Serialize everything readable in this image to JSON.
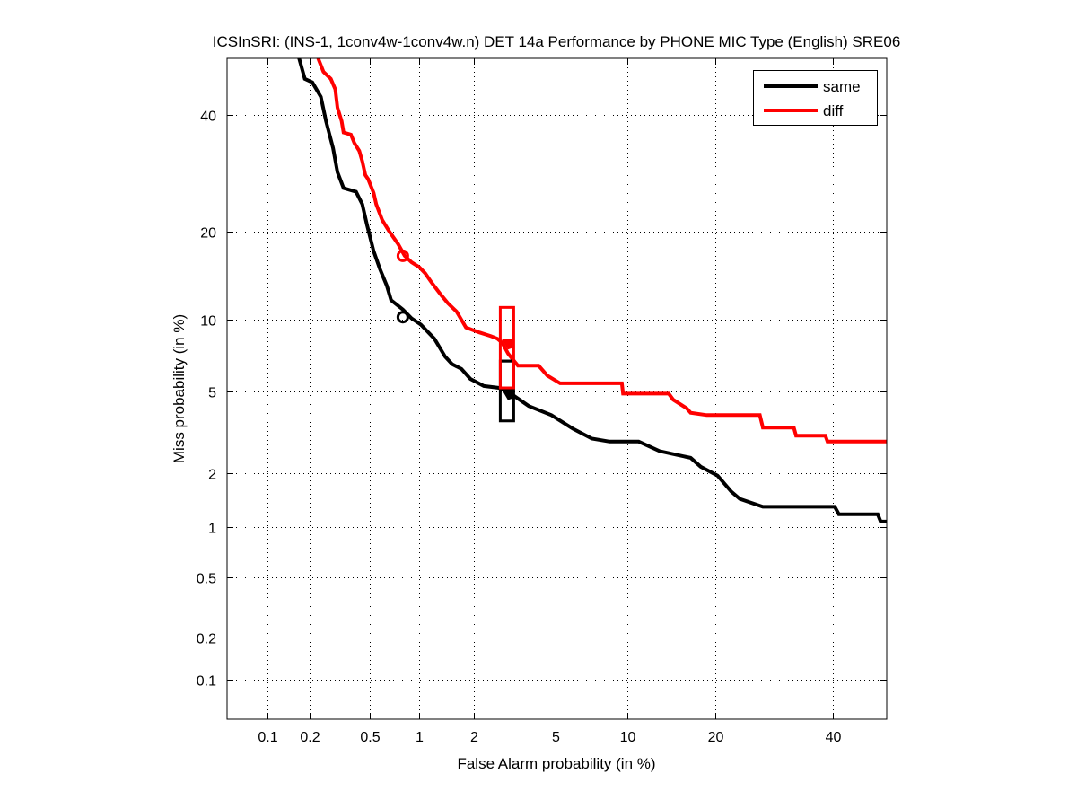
{
  "chart_data": {
    "type": "line",
    "scale": "probit",
    "title": "ICSInSRI: (INS-1, 1conv4w-1conv4w.n) DET 14a Performance by PHONE MIC Type (English) SRE06",
    "xlabel": "False Alarm probability (in %)",
    "ylabel": "Miss probability (in %)",
    "xlim": [
      0.05,
      50.7
    ],
    "ylim": [
      0.05,
      51.2
    ],
    "grid": true,
    "legend_position": "top-right",
    "x_ticks": [
      0.1,
      0.2,
      0.5,
      1,
      2,
      5,
      10,
      20,
      40
    ],
    "x_tick_labels": [
      "0.1",
      "0.2",
      "0.5",
      "1",
      "2",
      "5",
      "10",
      "20",
      "40"
    ],
    "y_ticks": [
      0.1,
      0.2,
      0.5,
      1,
      2,
      5,
      10,
      20,
      40
    ],
    "y_tick_labels": [
      "0.1",
      "0.2",
      "0.5",
      "1",
      "2",
      "5",
      "10",
      "20",
      "40"
    ],
    "series": [
      {
        "name": "same",
        "color": "#000000",
        "points": [
          [
            0.17,
            51.2
          ],
          [
            0.186,
            47.1
          ],
          [
            0.21,
            46.4
          ],
          [
            0.24,
            43.5
          ],
          [
            0.26,
            38.8
          ],
          [
            0.29,
            33.7
          ],
          [
            0.31,
            29.4
          ],
          [
            0.34,
            26.7
          ],
          [
            0.41,
            26.1
          ],
          [
            0.45,
            24.1
          ],
          [
            0.48,
            21.1
          ],
          [
            0.53,
            17.4
          ],
          [
            0.58,
            15.2
          ],
          [
            0.64,
            13.3
          ],
          [
            0.68,
            11.8
          ],
          [
            0.8,
            10.9
          ],
          [
            0.9,
            10.1
          ],
          [
            1.02,
            9.55
          ],
          [
            1.22,
            8.4
          ],
          [
            1.4,
            7.1
          ],
          [
            1.53,
            6.6
          ],
          [
            1.72,
            6.3
          ],
          [
            1.92,
            5.7
          ],
          [
            2.26,
            5.3
          ],
          [
            2.7,
            5.2
          ],
          [
            3.09,
            4.9
          ],
          [
            3.77,
            4.3
          ],
          [
            4.8,
            3.9
          ],
          [
            6.0,
            3.35
          ],
          [
            7.2,
            3.0
          ],
          [
            8.5,
            2.9
          ],
          [
            11.0,
            2.9
          ],
          [
            13.1,
            2.6
          ],
          [
            16.7,
            2.4
          ],
          [
            18.0,
            2.16
          ],
          [
            20.3,
            1.94
          ],
          [
            22.3,
            1.59
          ],
          [
            23.6,
            1.45
          ],
          [
            27.3,
            1.31
          ],
          [
            40.4,
            1.31
          ],
          [
            41.2,
            1.19
          ],
          [
            48.9,
            1.19
          ],
          [
            49.5,
            1.08
          ],
          [
            50.7,
            1.08
          ]
        ],
        "actual_dcf_point": [
          0.8,
          10.2
        ],
        "min_dcf_box": {
          "x": 2.96,
          "y_low": 3.66,
          "y_high": 6.8
        }
      },
      {
        "name": "diff",
        "color": "#ff0000",
        "points": [
          [
            0.23,
            51.2
          ],
          [
            0.25,
            48.5
          ],
          [
            0.28,
            47.1
          ],
          [
            0.3,
            45.0
          ],
          [
            0.31,
            41.4
          ],
          [
            0.33,
            38.8
          ],
          [
            0.34,
            36.6
          ],
          [
            0.38,
            36.2
          ],
          [
            0.4,
            34.6
          ],
          [
            0.43,
            33.2
          ],
          [
            0.45,
            31.3
          ],
          [
            0.47,
            28.9
          ],
          [
            0.49,
            28.2
          ],
          [
            0.53,
            25.9
          ],
          [
            0.55,
            24.1
          ],
          [
            0.6,
            21.7
          ],
          [
            0.66,
            20.1
          ],
          [
            0.75,
            18.3
          ],
          [
            0.82,
            16.8
          ],
          [
            0.9,
            16.0
          ],
          [
            1.0,
            15.4
          ],
          [
            1.08,
            14.7
          ],
          [
            1.18,
            13.6
          ],
          [
            1.32,
            12.4
          ],
          [
            1.45,
            11.5
          ],
          [
            1.62,
            10.7
          ],
          [
            1.82,
            9.3
          ],
          [
            2.14,
            8.9
          ],
          [
            2.46,
            8.6
          ],
          [
            2.65,
            8.4
          ],
          [
            2.8,
            8.1
          ],
          [
            3.0,
            7.3
          ],
          [
            3.35,
            6.5
          ],
          [
            4.2,
            6.5
          ],
          [
            4.6,
            5.9
          ],
          [
            5.26,
            5.45
          ],
          [
            9.5,
            5.45
          ],
          [
            9.6,
            4.9
          ],
          [
            14.1,
            4.9
          ],
          [
            14.6,
            4.6
          ],
          [
            16.2,
            4.2
          ],
          [
            16.7,
            4.0
          ],
          [
            18.8,
            3.9
          ],
          [
            26.8,
            3.9
          ],
          [
            27.3,
            3.4
          ],
          [
            32.7,
            3.4
          ],
          [
            33.1,
            3.1
          ],
          [
            38.6,
            3.1
          ],
          [
            39.0,
            2.9
          ],
          [
            50.7,
            2.9
          ]
        ],
        "actual_dcf_point": [
          0.8,
          16.8
        ],
        "min_dcf_box": {
          "x": 2.96,
          "y_low": 5.2,
          "y_high": 11.1
        }
      }
    ]
  }
}
